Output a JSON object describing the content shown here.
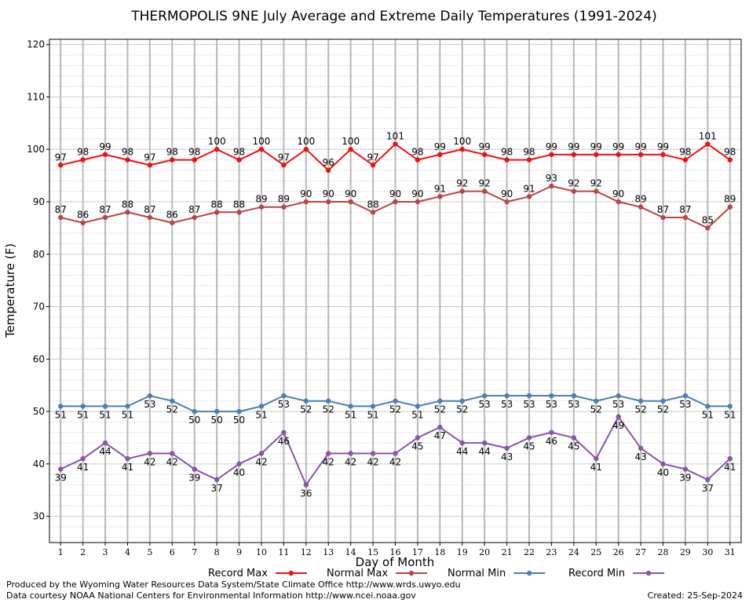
{
  "chart_data": {
    "type": "line",
    "title": "THERMOPOLIS 9NE July Average and Extreme Daily Temperatures (1991-2024)",
    "xlabel": "Day of Month",
    "ylabel": "Temperature (F)",
    "x": [
      1,
      2,
      3,
      4,
      5,
      6,
      7,
      8,
      9,
      10,
      11,
      12,
      13,
      14,
      15,
      16,
      17,
      18,
      19,
      20,
      21,
      22,
      23,
      24,
      25,
      26,
      27,
      28,
      29,
      30,
      31
    ],
    "xlim": [
      0.5,
      31.5
    ],
    "ylim": [
      25,
      121
    ],
    "y_ticks": [
      30,
      40,
      50,
      60,
      70,
      80,
      90,
      100,
      110,
      120
    ],
    "grid": true,
    "legend_position": "bottom",
    "series": [
      {
        "name": "Record Max",
        "color": "#ee1111",
        "values": [
          97,
          98,
          99,
          98,
          97,
          98,
          98,
          100,
          98,
          100,
          97,
          100,
          96,
          100,
          97,
          101,
          98,
          99,
          100,
          99,
          98,
          98,
          99,
          99,
          99,
          99,
          99,
          99,
          98,
          101,
          98
        ]
      },
      {
        "name": "Normal Max",
        "color": "#bb4444",
        "values": [
          87,
          86,
          87,
          88,
          87,
          86,
          87,
          88,
          88,
          89,
          89,
          90,
          90,
          90,
          88,
          90,
          90,
          91,
          92,
          92,
          90,
          91,
          93,
          92,
          92,
          90,
          89,
          87,
          87,
          85,
          89
        ]
      },
      {
        "name": "Normal Min",
        "color": "#4a7fb5",
        "values": [
          51,
          51,
          51,
          51,
          53,
          52,
          50,
          50,
          50,
          51,
          53,
          52,
          52,
          51,
          51,
          52,
          51,
          52,
          52,
          53,
          53,
          53,
          53,
          53,
          52,
          53,
          52,
          52,
          53,
          51,
          51
        ]
      },
      {
        "name": "Record Min",
        "color": "#8855aa",
        "values": [
          39,
          41,
          44,
          41,
          42,
          42,
          39,
          37,
          40,
          42,
          46,
          36,
          42,
          42,
          42,
          42,
          45,
          47,
          44,
          44,
          43,
          45,
          46,
          45,
          41,
          49,
          43,
          40,
          39,
          37,
          41
        ]
      }
    ]
  },
  "footer": {
    "produced": "Produced by the Wyoming Water Resources Data System/State Climate Office http://www.wrds.uwyo.edu",
    "courtesy": "Data courtesy NOAA National Centers for Environmental Information http://www.ncei.noaa.gov",
    "created": "Created:  25-Sep-2024"
  }
}
